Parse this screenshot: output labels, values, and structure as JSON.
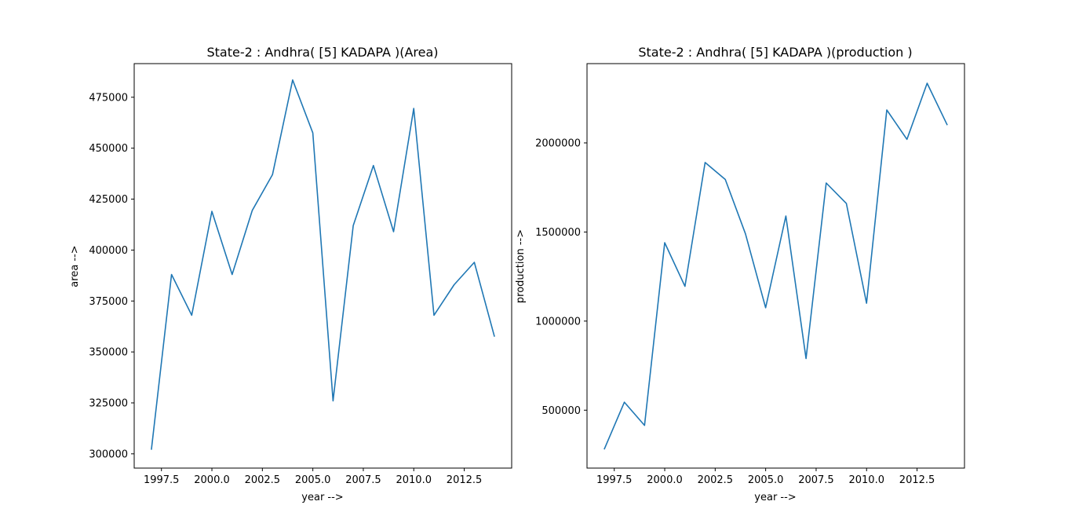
{
  "chart_data": [
    {
      "type": "line",
      "title": "State-2 : Andhra( [5] KADAPA )(Area)",
      "xlabel": "year -->",
      "ylabel": "area -->",
      "xlim": [
        1996.15,
        2014.85
      ],
      "ylim": [
        293000,
        491500
      ],
      "xticks": [
        1997.5,
        2000.0,
        2002.5,
        2005.0,
        2007.5,
        2010.0,
        2012.5
      ],
      "xtick_labels": [
        "1997.5",
        "2000.0",
        "2002.5",
        "2005.0",
        "2007.5",
        "2010.0",
        "2012.5"
      ],
      "yticks": [
        300000,
        325000,
        350000,
        375000,
        400000,
        425000,
        450000,
        475000
      ],
      "ytick_labels": [
        "300000",
        "325000",
        "350000",
        "375000",
        "400000",
        "425000",
        "450000",
        "475000"
      ],
      "grid": false,
      "color": "#1f77b4",
      "x": [
        1997,
        1998,
        1999,
        2000,
        2001,
        2002,
        2003,
        2004,
        2005,
        2006,
        2007,
        2008,
        2009,
        2010,
        2011,
        2012,
        2013,
        2014
      ],
      "y": [
        302000,
        388000,
        368000,
        419000,
        388000,
        419500,
        437000,
        483500,
        457500,
        326000,
        412000,
        441500,
        409000,
        469500,
        368000,
        383000,
        394000,
        357500
      ]
    },
    {
      "type": "line",
      "title": "State-2 : Andhra( [5] KADAPA )(production )",
      "xlabel": "year -->",
      "ylabel": "production -->",
      "xlim": [
        1996.15,
        2014.85
      ],
      "ylim": [
        175000,
        2445000
      ],
      "xticks": [
        1997.5,
        2000.0,
        2002.5,
        2005.0,
        2007.5,
        2010.0,
        2012.5
      ],
      "xtick_labels": [
        "1997.5",
        "2000.0",
        "2002.5",
        "2005.0",
        "2007.5",
        "2010.0",
        "2012.5"
      ],
      "yticks": [
        500000,
        1000000,
        1500000,
        2000000
      ],
      "ytick_labels": [
        "500000",
        "1000000",
        "1500000",
        "2000000"
      ],
      "grid": false,
      "color": "#1f77b4",
      "x": [
        1997,
        1998,
        1999,
        2000,
        2001,
        2002,
        2003,
        2004,
        2005,
        2006,
        2007,
        2008,
        2009,
        2010,
        2011,
        2012,
        2013,
        2014
      ],
      "y": [
        280000,
        545000,
        415000,
        1440000,
        1195000,
        1890000,
        1795000,
        1490000,
        1075000,
        1590000,
        790000,
        1775000,
        1660000,
        1100000,
        2185000,
        2020000,
        2335000,
        2100000
      ]
    }
  ]
}
